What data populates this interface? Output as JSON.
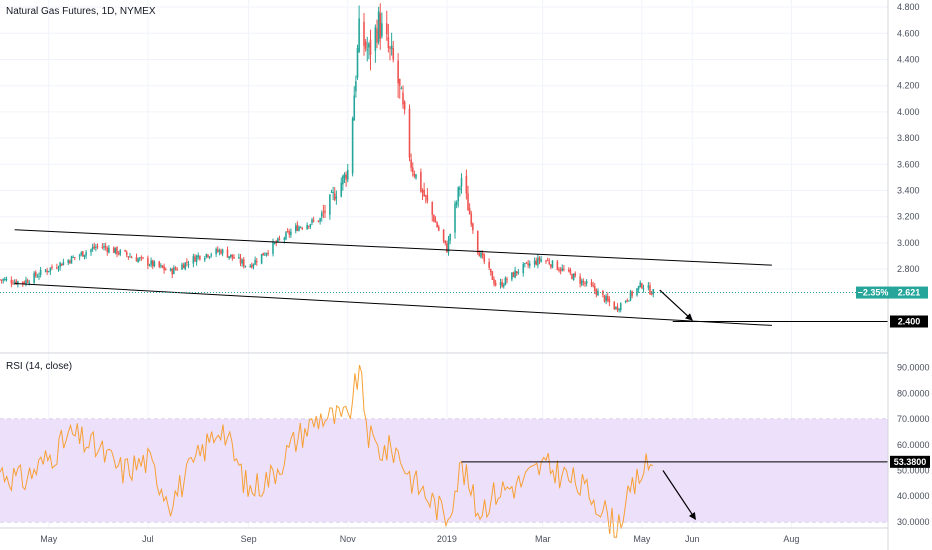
{
  "main_pane": {
    "legend": "Natural Gas Futures, 1D, NYMEX",
    "price_axis": [
      "4.800",
      "4.600",
      "4.400",
      "4.200",
      "4.000",
      "3.800",
      "3.600",
      "3.400",
      "3.200",
      "3.000",
      "2.800",
      "2.621",
      "2.400"
    ],
    "last_change": "−2.35%",
    "last_price": "2.621",
    "target_price": "2.400"
  },
  "rsi_pane": {
    "legend": "RSI (14, close)",
    "axis": [
      "90.0000",
      "80.0000",
      "70.0000",
      "60.0000",
      "50.0000",
      "40.0000",
      "30.0000"
    ],
    "marked_value": "53.3800"
  },
  "time_axis": [
    "May",
    "Jul",
    "Sep",
    "Nov",
    "2019",
    "Mar",
    "May",
    "Jun",
    "Aug"
  ],
  "colors": {
    "up": "#26a69a",
    "down": "#ef5350",
    "rsi_line": "#f7a035",
    "rsi_band": "#ede0fb",
    "last_price": "#26a69a",
    "trendline": "#000000"
  },
  "chart_data": [
    {
      "type": "candlestick",
      "title": "Natural Gas Futures, 1D, NYMEX",
      "x": [
        "2018-04-01",
        "2018-04-15",
        "2018-05-01",
        "2018-05-15",
        "2018-06-01",
        "2018-06-15",
        "2018-07-01",
        "2018-07-15",
        "2018-08-01",
        "2018-08-15",
        "2018-09-01",
        "2018-09-15",
        "2018-10-01",
        "2018-10-15",
        "2018-11-01",
        "2018-11-08",
        "2018-11-14",
        "2018-11-20",
        "2018-12-01",
        "2018-12-10",
        "2018-12-20",
        "2019-01-01",
        "2019-01-10",
        "2019-01-20",
        "2019-02-01",
        "2019-02-15",
        "2019-03-01",
        "2019-03-15",
        "2019-04-01",
        "2019-04-15",
        "2019-05-01",
        "2019-05-08"
      ],
      "close": [
        2.72,
        2.7,
        2.8,
        2.88,
        2.98,
        2.92,
        2.85,
        2.78,
        2.9,
        2.94,
        2.82,
        2.97,
        3.12,
        3.18,
        3.55,
        4.6,
        4.45,
        4.68,
        4.3,
        3.6,
        3.3,
        2.95,
        3.5,
        2.95,
        2.66,
        2.8,
        2.88,
        2.78,
        2.65,
        2.5,
        2.68,
        2.62
      ],
      "ylim": [
        2.3,
        4.9
      ],
      "trendlines": [
        {
          "from": [
            "2018-04-10",
            3.1
          ],
          "to": [
            "2019-07-20",
            2.83
          ]
        },
        {
          "from": [
            "2018-04-10",
            2.69
          ],
          "to": [
            "2019-07-20",
            2.37
          ]
        }
      ],
      "last_change": "−2.35%",
      "last_price": 2.621,
      "target_level": 2.4
    },
    {
      "type": "line",
      "title": "RSI (14, close)",
      "x": [
        "2018-04-01",
        "2018-04-15",
        "2018-05-01",
        "2018-05-15",
        "2018-06-01",
        "2018-06-15",
        "2018-07-01",
        "2018-07-15",
        "2018-08-01",
        "2018-08-15",
        "2018-09-01",
        "2018-09-15",
        "2018-10-01",
        "2018-10-15",
        "2018-11-01",
        "2018-11-08",
        "2018-11-14",
        "2018-11-20",
        "2018-12-01",
        "2018-12-10",
        "2018-12-20",
        "2019-01-01",
        "2019-01-10",
        "2019-01-20",
        "2019-02-01",
        "2019-02-15",
        "2019-03-01",
        "2019-03-15",
        "2019-04-01",
        "2019-04-15",
        "2019-05-01",
        "2019-05-08"
      ],
      "values": [
        50,
        46,
        55,
        64,
        58,
        50,
        54,
        38,
        55,
        68,
        42,
        48,
        63,
        71,
        70,
        89,
        63,
        58,
        58,
        47,
        40,
        32,
        52,
        34,
        42,
        45,
        52,
        48,
        40,
        28,
        50,
        53
      ],
      "ylim": [
        24,
        93
      ],
      "band": [
        30,
        70
      ],
      "marked_level": 53.38,
      "marked_label": "53.3800"
    }
  ]
}
